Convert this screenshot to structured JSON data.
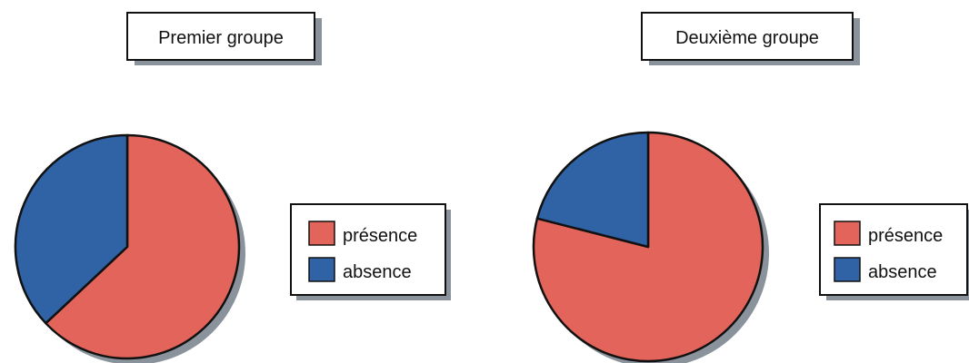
{
  "colors": {
    "presence": "#e2645a",
    "absence": "#2f63a6",
    "outline": "#111111",
    "shadow": "#8a939c"
  },
  "chart_data": [
    {
      "type": "pie",
      "title": "Premier groupe",
      "categories": [
        "présence",
        "absence"
      ],
      "values": [
        63,
        37
      ],
      "legend": [
        "présence",
        "absence"
      ],
      "legend_position": "right"
    },
    {
      "type": "pie",
      "title": "Deuxième groupe",
      "categories": [
        "présence",
        "absence"
      ],
      "values": [
        79,
        21
      ],
      "legend": [
        "présence",
        "absence"
      ],
      "legend_position": "right"
    }
  ]
}
